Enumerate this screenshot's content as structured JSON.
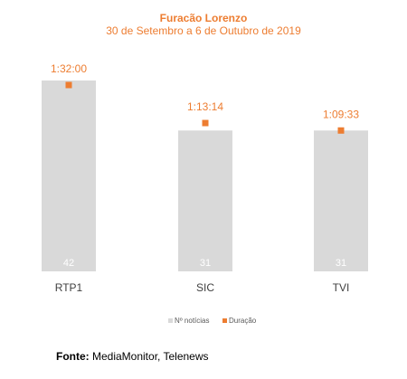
{
  "chart_data": {
    "type": "bar",
    "title": "Furacão Lorenzo",
    "subtitle": "30 de Setembro a 6 de Outubro de 2019",
    "categories": [
      "RTP1",
      "SIC",
      "TVI"
    ],
    "series": [
      {
        "name": "Nº notícias",
        "values": [
          42,
          31,
          31
        ],
        "labels": [
          "42",
          "31",
          "31"
        ],
        "color": "#D9D9D9"
      },
      {
        "name": "Duração",
        "values": [
          92.0,
          73.23,
          69.55
        ],
        "labels": [
          "1:32:00",
          "1:13:14",
          "1:09:33"
        ],
        "color": "#ED7D31"
      }
    ],
    "legend": "bottom",
    "grid": false
  },
  "footer": {
    "source_label": "Fonte:",
    "source_text": " MediaMonitor, Telenews"
  },
  "colors": {
    "accent": "#ED7D31",
    "bar": "#D9D9D9",
    "bar_label": "#FFFFFF",
    "axis_text": "#404040"
  }
}
